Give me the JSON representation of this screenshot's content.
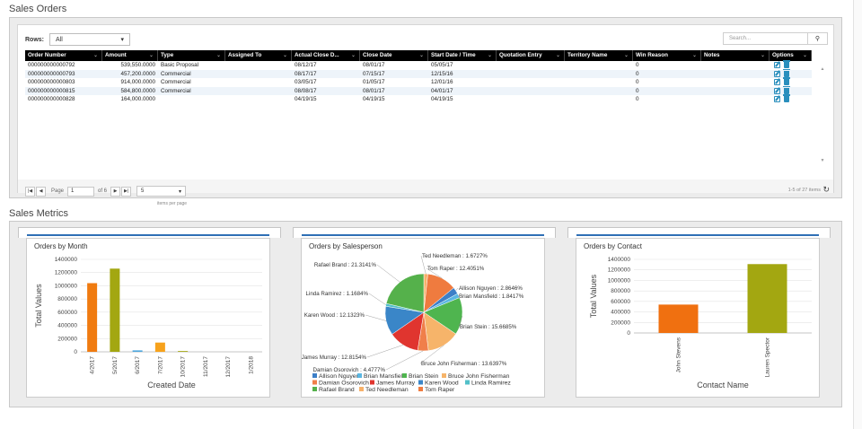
{
  "orders": {
    "title": "Sales Orders",
    "rows_label": "Rows:",
    "rows_value": "All",
    "search_placeholder": "Search...",
    "columns": [
      {
        "label": "Order Number",
        "w": 0
      },
      {
        "label": "Amount"
      },
      {
        "label": "Type"
      },
      {
        "label": "Assigned To"
      },
      {
        "label": "Actual Close D..."
      },
      {
        "label": "Close Date"
      },
      {
        "label": "Start Date / Time"
      },
      {
        "label": "Quotation Entry"
      },
      {
        "label": "Territory Name"
      },
      {
        "label": "Win Reason"
      },
      {
        "label": "Notes"
      },
      {
        "label": "Options"
      }
    ],
    "rows": [
      {
        "order": "000000000000792",
        "amount": "539,550.0000",
        "type": "Basic Proposal",
        "assigned": "",
        "actual_close": "08/12/17",
        "close": "08/01/17",
        "start": "05/05/17",
        "quote": "",
        "territory": "",
        "win": "0",
        "notes": ""
      },
      {
        "order": "000000000000793",
        "amount": "457,200.0000",
        "type": "Commercial",
        "assigned": "",
        "actual_close": "08/17/17",
        "close": "07/15/17",
        "start": "12/15/16",
        "quote": "",
        "territory": "",
        "win": "0",
        "notes": ""
      },
      {
        "order": "000000000000803",
        "amount": "914,000.0000",
        "type": "Commercial",
        "assigned": "",
        "actual_close": "03/05/17",
        "close": "01/05/17",
        "start": "12/01/16",
        "quote": "",
        "territory": "",
        "win": "0",
        "notes": ""
      },
      {
        "order": "000000000000815",
        "amount": "584,800.0000",
        "type": "Commercial",
        "assigned": "",
        "actual_close": "08/08/17",
        "close": "08/01/17",
        "start": "04/01/17",
        "quote": "",
        "territory": "",
        "win": "0",
        "notes": ""
      },
      {
        "order": "000000000000828",
        "amount": "164,000.0000",
        "type": "",
        "assigned": "",
        "actual_close": "04/19/15",
        "close": "04/19/15",
        "start": "04/19/15",
        "quote": "",
        "territory": "",
        "win": "0",
        "notes": ""
      }
    ],
    "pager": {
      "page_label": "Page",
      "page_value": "1",
      "of_label": "of 6",
      "page_size": "5",
      "items_per_page": "items per page",
      "summary": "1-5 of 27 items"
    }
  },
  "metrics": {
    "title": "Sales Metrics"
  },
  "chart_data": [
    {
      "type": "bar",
      "title": "Orders by Month",
      "xlabel": "Created Date",
      "ylabel": "Total Values",
      "ylim": [
        0,
        1400000
      ],
      "yticks": [
        "1400000",
        "1200000",
        "1000000",
        "800000",
        "600000",
        "400000",
        "200000",
        "0"
      ],
      "ytick_values": [
        1400000,
        1200000,
        1000000,
        800000,
        600000,
        400000,
        200000,
        0
      ],
      "categories": [
        "4/2017",
        "5/2017",
        "6/2017",
        "7/2017",
        "10/2017",
        "11/2017",
        "12/2017",
        "1/2018"
      ],
      "values": [
        1040000,
        1260000,
        22000,
        140000,
        12000,
        0,
        0,
        0
      ],
      "colors": [
        "#f07b10",
        "#a3a711",
        "#4ea6dc",
        "#f7a21c",
        "#a3a711",
        "#4ea6dc",
        "#4ea6dc",
        "#4ea6dc"
      ],
      "grid": true
    },
    {
      "type": "pie",
      "title": "Orders by Salesperson",
      "legend_position": "bottom",
      "slices": [
        {
          "name": "Ted Needleman",
          "value": 1.6727,
          "label": "Ted Needleman : 1.6727%",
          "color": "#f7b16a"
        },
        {
          "name": "Tom Raper",
          "value": 12.4051,
          "label": "Tom Raper : 12.4051%",
          "color": "#ef7b3f"
        },
        {
          "name": "Allison Nguyen",
          "value": 2.8646,
          "label": "Allison Nguyen : 2.8646%",
          "color": "#3d7fc7"
        },
        {
          "name": "Brian Mansfield",
          "value": 1.8417,
          "label": "Brian Mansfield : 1.8417%",
          "color": "#5bb7e2"
        },
        {
          "name": "Brian Stein",
          "value": 15.6685,
          "label": "Brian Stein : 15.6685%",
          "color": "#4fb54f"
        },
        {
          "name": "Bruce John Fisherman",
          "value": 13.6397,
          "label": "Bruce John Fisherman : 13.6397%",
          "color": "#f6b46a"
        },
        {
          "name": "Damian Osorovich",
          "value": 4.4777,
          "label": "Damian Osorovich : 4.4777%",
          "color": "#f07f4a"
        },
        {
          "name": "James Murray",
          "value": 12.8154,
          "label": "James Murray : 12.8154%",
          "color": "#e0352f"
        },
        {
          "name": "Karen Wood",
          "value": 12.1323,
          "label": "Karen Wood : 12.1323%",
          "color": "#3a86c8"
        },
        {
          "name": "Linda Ramirez",
          "value": 1.1684,
          "label": "Linda Ramirez : 1.1684%",
          "color": "#52c0c9"
        },
        {
          "name": "Rafael Brand",
          "value": 21.3141,
          "label": "Rafael Brand : 21.3141%",
          "color": "#55b14b"
        }
      ],
      "legend": [
        {
          "name": "Allison Nguyen",
          "color": "#3d7fc7"
        },
        {
          "name": "Brian Mansfield",
          "color": "#5bb7e2"
        },
        {
          "name": "Brian Stein",
          "color": "#4fb54f"
        },
        {
          "name": "Bruce John Fisherman",
          "color": "#f6b46a"
        },
        {
          "name": "Damian Osorovich",
          "color": "#f07f4a"
        },
        {
          "name": "James Murray",
          "color": "#e0352f"
        },
        {
          "name": "Karen Wood",
          "color": "#3a86c8"
        },
        {
          "name": "Linda Ramirez",
          "color": "#52c0c9"
        },
        {
          "name": "Rafael Brand",
          "color": "#55b14b"
        },
        {
          "name": "Ted Needleman",
          "color": "#f7b16a"
        },
        {
          "name": "Tom Raper",
          "color": "#ef7b3f"
        }
      ]
    },
    {
      "type": "bar",
      "title": "Orders by Contact",
      "xlabel": "Contact Name",
      "ylabel": "Total Values",
      "ylim": [
        0,
        1400000
      ],
      "yticks": [
        "1400000",
        "1200000",
        "1000000",
        "800000",
        "600000",
        "400000",
        "200000",
        "0"
      ],
      "ytick_values": [
        1400000,
        1200000,
        1000000,
        800000,
        600000,
        400000,
        200000,
        0
      ],
      "categories": [
        "John Stevens",
        "Lauren Spector"
      ],
      "values": [
        540000,
        1310000
      ],
      "colors": [
        "#f07010",
        "#a3a711"
      ],
      "grid": true
    }
  ]
}
